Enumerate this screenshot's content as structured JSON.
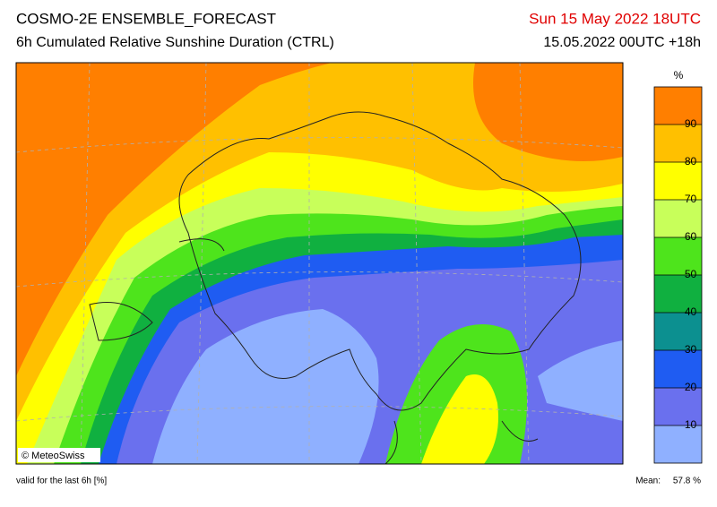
{
  "header": {
    "title": "COSMO-2E ENSEMBLE_FORECAST",
    "subtitle": "6h Cumulated Relative Sunshine Duration (CTRL)",
    "valid_time": "Sun 15 May 2022 18UTC",
    "run": "15.05.2022 00UTC +18h"
  },
  "map": {
    "credit": "© MeteoSwiss"
  },
  "legend": {
    "unit": "%",
    "ticks": [
      10,
      20,
      30,
      40,
      50,
      60,
      70,
      80,
      90
    ],
    "colors": [
      "#8fb0ff",
      "#6a70ee",
      "#1f5cf2",
      "#0c9090",
      "#10b040",
      "#4ee41c",
      "#c8ff5a",
      "#ffff00",
      "#ffc000",
      "#ff7f00"
    ]
  },
  "footer": {
    "note": "valid for the last 6h [%]",
    "mean_label": "Mean:",
    "mean_value": "57.8 %"
  }
}
